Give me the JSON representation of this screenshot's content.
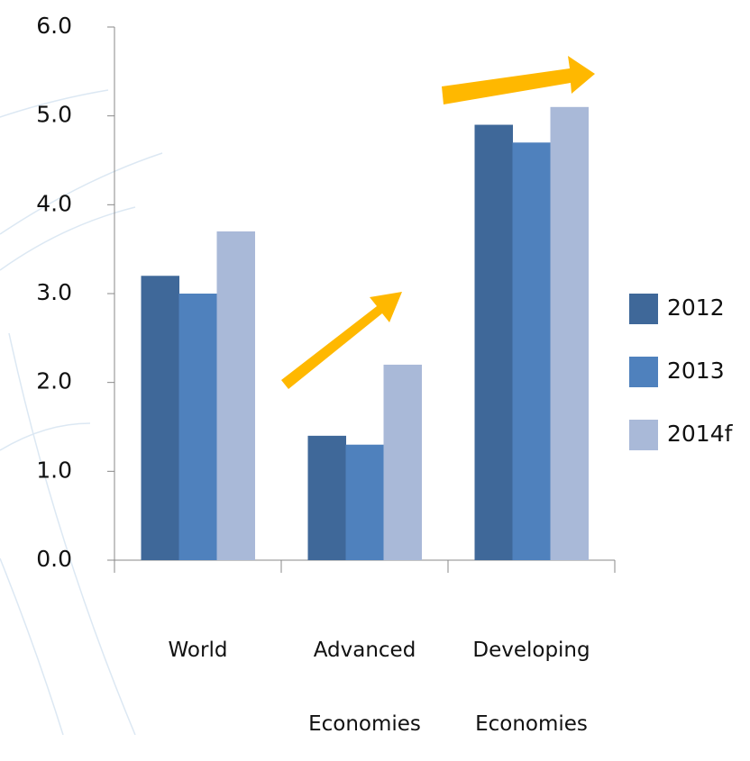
{
  "chart_data": {
    "type": "bar",
    "categories": [
      "World",
      "Advanced Economies",
      "Developing Economies"
    ],
    "series": [
      {
        "name": "2012",
        "color": "#3f6899",
        "values": [
          3.2,
          1.4,
          4.9
        ]
      },
      {
        "name": "2013",
        "color": "#4f81bd",
        "values": [
          3.0,
          1.3,
          4.7
        ]
      },
      {
        "name": "2014f",
        "color": "#a9b9d8",
        "values": [
          3.7,
          2.2,
          5.1
        ]
      }
    ],
    "ylim": [
      0,
      6
    ],
    "yticks": [
      {
        "value": 0,
        "label": "0.0"
      },
      {
        "value": 1,
        "label": "1.0"
      },
      {
        "value": 2,
        "label": "2.0"
      },
      {
        "value": 3,
        "label": "3.0"
      },
      {
        "value": 4,
        "label": "4.0"
      },
      {
        "value": 5,
        "label": "5.0"
      },
      {
        "value": 6,
        "label": "6.0"
      }
    ],
    "legend": "right"
  }
}
